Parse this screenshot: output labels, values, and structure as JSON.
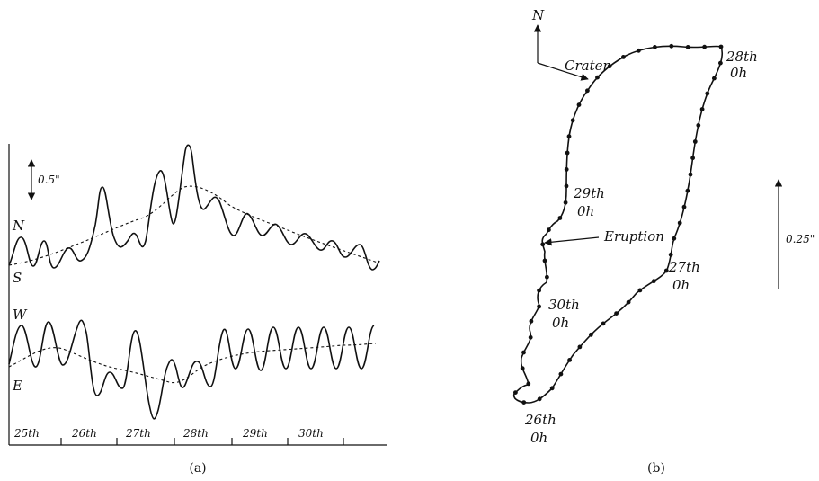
{
  "panel_a": {
    "scale_label": "0.5\"",
    "trace_labels": {
      "n": "N",
      "s": "S",
      "w": "W",
      "e": "E"
    },
    "day_labels": [
      "25th",
      "26th",
      "27th",
      "28th",
      "29th",
      "30th"
    ],
    "caption": "(a)"
  },
  "panel_b": {
    "north": "N",
    "crater": "Crater",
    "scale_label": "0.25\"",
    "eruption": "Eruption",
    "time_labels": [
      {
        "day": "28th",
        "hour": "0h"
      },
      {
        "day": "29th",
        "hour": "0h"
      },
      {
        "day": "27th",
        "hour": "0h"
      },
      {
        "day": "30th",
        "hour": "0h"
      },
      {
        "day": "26th",
        "hour": "0h"
      }
    ],
    "caption": "(b)"
  }
}
